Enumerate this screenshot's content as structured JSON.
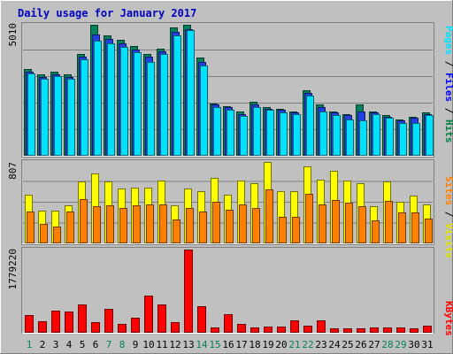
{
  "chart_data": [
    {
      "type": "bar",
      "title": "Daily usage for January 2017",
      "ymax_label": "5010",
      "ylim": [
        0,
        5010
      ],
      "grid": true,
      "categories": [
        "1",
        "2",
        "3",
        "4",
        "5",
        "6",
        "7",
        "8",
        "9",
        "10",
        "11",
        "12",
        "13",
        "14",
        "15",
        "16",
        "17",
        "18",
        "19",
        "20",
        "21",
        "22",
        "23",
        "24",
        "25",
        "26",
        "27",
        "28",
        "29",
        "30",
        "31"
      ],
      "weekend_days": [
        "1",
        "7",
        "8",
        "14",
        "15",
        "21",
        "22",
        "28",
        "29"
      ],
      "legend": [
        {
          "label": "Hits",
          "color": "#008040"
        },
        {
          "label": "Files",
          "color": "#0000FF"
        },
        {
          "label": "Pages",
          "color": "#00FFFF"
        }
      ],
      "series": [
        {
          "name": "Hits",
          "color": "#00805C",
          "values": [
            3320,
            3100,
            3220,
            3100,
            3900,
            5010,
            4590,
            4420,
            4200,
            3900,
            4100,
            4900,
            5000,
            3750,
            2000,
            1900,
            1700,
            2050,
            1850,
            1800,
            1700,
            2500,
            1950,
            1700,
            1600,
            1950,
            1700,
            1550,
            1400,
            1500,
            1650
          ]
        },
        {
          "name": "Files",
          "color": "#2040E0",
          "values": [
            3220,
            3000,
            3120,
            3000,
            3800,
            4650,
            4480,
            4300,
            4050,
            3800,
            4000,
            4750,
            4850,
            3600,
            1950,
            1850,
            1600,
            1950,
            1800,
            1750,
            1650,
            2400,
            1850,
            1650,
            1550,
            1700,
            1650,
            1500,
            1350,
            1450,
            1600
          ]
        },
        {
          "name": "Pages",
          "color": "#00E0FF",
          "values": [
            3150,
            2950,
            3050,
            2950,
            3700,
            4400,
            4300,
            4150,
            3950,
            3600,
            3900,
            4600,
            4800,
            3450,
            1850,
            1750,
            1520,
            1850,
            1750,
            1650,
            1600,
            2300,
            1700,
            1550,
            1400,
            1350,
            1600,
            1450,
            1250,
            1250,
            1550
          ]
        }
      ]
    },
    {
      "type": "bar",
      "ymax_label": "807",
      "ylim": [
        0,
        807
      ],
      "grid": true,
      "legend": [
        {
          "label": "Visits",
          "color": "#FFFF00"
        },
        {
          "label": "Sites",
          "color": "#FF8000"
        }
      ],
      "series": [
        {
          "name": "Visits",
          "color": "#FFFF00",
          "values": [
            480,
            325,
            325,
            375,
            610,
            695,
            610,
            545,
            550,
            550,
            620,
            375,
            545,
            520,
            650,
            480,
            620,
            600,
            807,
            520,
            520,
            760,
            630,
            720,
            620,
            595,
            365,
            615,
            410,
            470,
            385
          ]
        },
        {
          "name": "Sites",
          "color": "#FF8000",
          "values": [
            320,
            195,
            165,
            320,
            435,
            370,
            380,
            350,
            380,
            390,
            390,
            240,
            355,
            320,
            410,
            330,
            385,
            350,
            535,
            265,
            265,
            495,
            390,
            430,
            405,
            370,
            225,
            420,
            305,
            310,
            245
          ]
        }
      ]
    },
    {
      "type": "bar",
      "ymax_label": "1779220",
      "ylim": [
        0,
        1779220
      ],
      "grid": true,
      "legend": [
        {
          "label": "KBytes",
          "color": "#FF0000"
        }
      ],
      "series": [
        {
          "name": "KBytes",
          "color": "#FF0000",
          "values": [
            370000,
            240000,
            470000,
            450000,
            600000,
            230000,
            520000,
            190000,
            330000,
            790000,
            600000,
            230000,
            1779220,
            560000,
            110000,
            390000,
            190000,
            120000,
            140000,
            130000,
            270000,
            160000,
            270000,
            90000,
            100000,
            90000,
            120000,
            120000,
            120000,
            100000,
            160000
          ]
        }
      ]
    }
  ]
}
